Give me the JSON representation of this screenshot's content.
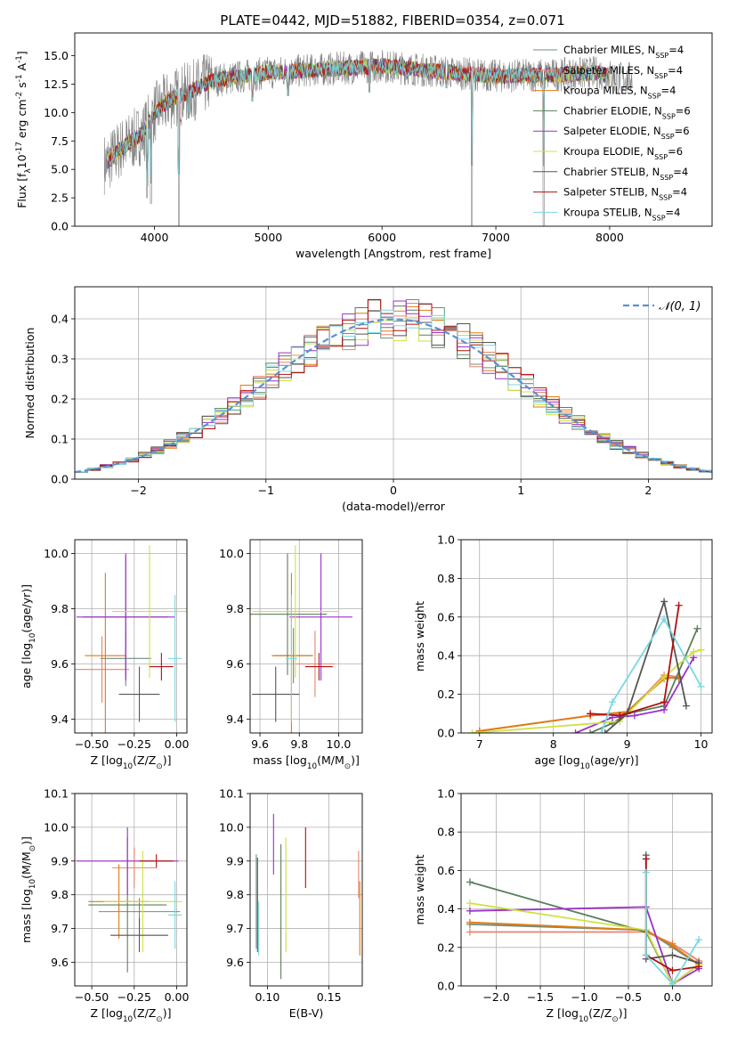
{
  "figure_title": "PLATE=0442, MJD=51882, FIBERID=0354, z=0.071",
  "colors": {
    "Chabrier MILES": "#6e8e84",
    "Salpeter MILES": "#e8846c",
    "Kroupa MILES": "#e07b10",
    "Chabrier ELODIE": "#5a7f5a",
    "Salpeter ELODIE": "#9b30c8",
    "Kroupa ELODIE": "#d0e040",
    "Chabrier STELIB": "#555555",
    "Salpeter STELIB": "#b01010",
    "Kroupa STELIB": "#78d8e0",
    "observed": "#808080",
    "gaussian": "#5b8fd6"
  },
  "chart_data": [
    {
      "id": "spectrum",
      "type": "line",
      "xlabel": "wavelength [Angstrom, rest frame]",
      "ylabel": "Flux [f$_\\lambda$10$^{-17}$ erg cm$^{-2}$ s$^{-1}$ A$^{-1}$]",
      "xlim": [
        3300,
        8900
      ],
      "ylim": [
        0,
        17
      ],
      "xticks": [
        4000,
        5000,
        6000,
        7000,
        8000
      ],
      "yticks": [
        0.0,
        2.5,
        5.0,
        7.5,
        10.0,
        12.5,
        15.0
      ],
      "grid": false,
      "legend_position": "right",
      "legend": [
        {
          "name": "Chabrier MILES",
          "nssp": "4"
        },
        {
          "name": "Salpeter MILES",
          "nssp": "4"
        },
        {
          "name": "Kroupa MILES",
          "nssp": "4"
        },
        {
          "name": "Chabrier ELODIE",
          "nssp": "6"
        },
        {
          "name": "Salpeter ELODIE",
          "nssp": "6"
        },
        {
          "name": "Kroupa ELODIE",
          "nssp": "6"
        },
        {
          "name": "Chabrier STELIB",
          "nssp": "4"
        },
        {
          "name": "Salpeter STELIB",
          "nssp": "4"
        },
        {
          "name": "Kroupa STELIB",
          "nssp": "4"
        }
      ],
      "continuum_shape": [
        [
          3580,
          5.5
        ],
        [
          3700,
          6.8
        ],
        [
          3900,
          8.2
        ],
        [
          4000,
          10.0
        ],
        [
          4150,
          11.2
        ],
        [
          4350,
          12.0
        ],
        [
          4500,
          12.8
        ],
        [
          5000,
          13.5
        ],
        [
          5500,
          13.8
        ],
        [
          6000,
          14.1
        ],
        [
          6500,
          13.6
        ],
        [
          7000,
          13.2
        ],
        [
          7500,
          13.3
        ],
        [
          7900,
          13.5
        ],
        [
          8100,
          13.0
        ]
      ],
      "absorption_lines": [
        [
          3935,
          2.5
        ],
        [
          3970,
          2.0
        ],
        [
          4215,
          0.0
        ],
        [
          4300,
          9.5
        ],
        [
          4861,
          11.0
        ],
        [
          5175,
          11.5
        ],
        [
          5890,
          11.8
        ],
        [
          6563,
          12.2
        ],
        [
          6790,
          0.0
        ],
        [
          7420,
          0.0
        ]
      ],
      "observed_xrange": [
        3560,
        8200
      ],
      "models_xrange": [
        3580,
        8000
      ]
    },
    {
      "id": "residuals",
      "type": "bar",
      "xlabel": "(data-model)/error",
      "ylabel": "Normed distribution",
      "xlim": [
        -2.5,
        2.5
      ],
      "ylim": [
        0,
        0.48
      ],
      "xticks": [
        -2,
        -1,
        0,
        1,
        2
      ],
      "yticks": [
        0.0,
        0.1,
        0.2,
        0.3,
        0.4
      ],
      "grid": true,
      "legend_position": "top-right",
      "legend": [
        {
          "name": "$\\mathcal{N}(0, 1)$"
        }
      ],
      "bin_width": 0.1,
      "bin_start": -2.5
    },
    {
      "id": "age_vs_Z",
      "type": "scatter",
      "xlabel": "Z [log$_{10}$(Z/Z$_\\odot$)]",
      "ylabel": "age  [log$_{10}$(age/yr)]",
      "xlim": [
        -0.6,
        0.06
      ],
      "ylim": [
        9.35,
        10.05
      ],
      "xticks": [
        -0.5,
        -0.25,
        0.0
      ],
      "yticks": [
        9.4,
        9.6,
        9.8,
        10.0
      ],
      "grid": true,
      "points": [
        {
          "model": "Chabrier MILES",
          "x": -0.3,
          "y": 9.62,
          "xerr": 0.15,
          "yerr": 0.1
        },
        {
          "model": "Salpeter MILES",
          "x": -0.44,
          "y": 9.58,
          "xerr": 0.16,
          "yerr": 0.12
        },
        {
          "model": "Kroupa MILES",
          "x": -0.42,
          "y": 9.63,
          "xerr": 0.12,
          "yerr": 0.3
        },
        {
          "model": "Chabrier ELODIE",
          "x": -0.3,
          "y": 9.77,
          "xerr": 0.25,
          "yerr": 0.22
        },
        {
          "model": "Salpeter ELODIE",
          "x": -0.3,
          "y": 9.77,
          "xerr": 0.29,
          "yerr": 0.23
        },
        {
          "model": "Kroupa ELODIE",
          "x": -0.16,
          "y": 9.79,
          "xerr": 0.22,
          "yerr": 0.24
        },
        {
          "model": "Chabrier STELIB",
          "x": -0.22,
          "y": 9.49,
          "xerr": 0.12,
          "yerr": 0.1
        },
        {
          "model": "Salpeter STELIB",
          "x": -0.09,
          "y": 9.59,
          "xerr": 0.07,
          "yerr": 0.05
        },
        {
          "model": "Kroupa STELIB",
          "x": -0.01,
          "y": 9.62,
          "xerr": 0.04,
          "yerr": 0.23
        }
      ]
    },
    {
      "id": "age_vs_mass",
      "type": "scatter",
      "xlabel": "mass [log$_{10}$(M/M$_\\odot$)]",
      "ylabel": "",
      "xlim": [
        9.55,
        10.12
      ],
      "ylim": [
        9.35,
        10.05
      ],
      "xticks": [
        9.6,
        9.8,
        10.0
      ],
      "yticks": [
        9.4,
        9.6,
        9.8,
        10.0
      ],
      "grid": true,
      "points": [
        {
          "model": "Chabrier MILES",
          "x": 9.77,
          "y": 9.63,
          "xerr": 0.1,
          "yerr": 0.1
        },
        {
          "model": "Salpeter MILES",
          "x": 9.88,
          "y": 9.6,
          "xerr": 0.1,
          "yerr": 0.12
        },
        {
          "model": "Kroupa MILES",
          "x": 9.76,
          "y": 9.63,
          "xerr": 0.1,
          "yerr": 0.3
        },
        {
          "model": "Chabrier ELODIE",
          "x": 9.74,
          "y": 9.78,
          "xerr": 0.2,
          "yerr": 0.22
        },
        {
          "model": "Salpeter ELODIE",
          "x": 9.91,
          "y": 9.77,
          "xerr": 0.16,
          "yerr": 0.23
        },
        {
          "model": "Kroupa ELODIE",
          "x": 9.78,
          "y": 9.79,
          "xerr": 0.22,
          "yerr": 0.24
        },
        {
          "model": "Chabrier STELIB",
          "x": 9.68,
          "y": 9.49,
          "xerr": 0.12,
          "yerr": 0.1
        },
        {
          "model": "Salpeter STELIB",
          "x": 9.9,
          "y": 9.59,
          "xerr": 0.07,
          "yerr": 0.05
        },
        {
          "model": "Kroupa STELIB",
          "x": 9.76,
          "y": 9.62,
          "xerr": 0.03,
          "yerr": 0.23
        }
      ]
    },
    {
      "id": "weight_vs_age",
      "type": "line",
      "xlabel": "age  [log$_{10}$(age/yr)]",
      "ylabel": "mass weight",
      "xlim": [
        6.75,
        10.15
      ],
      "ylim": [
        0,
        1
      ],
      "xticks": [
        7,
        8,
        9,
        10
      ],
      "yticks": [
        0.0,
        0.2,
        0.4,
        0.6,
        0.8,
        1.0
      ],
      "grid": true,
      "series": [
        {
          "name": "Chabrier MILES",
          "x": [
            7.0,
            8.5,
            9.0,
            9.5,
            9.7
          ],
          "y": [
            0.01,
            0.09,
            0.11,
            0.29,
            0.28
          ]
        },
        {
          "name": "Salpeter MILES",
          "x": [
            7.0,
            8.5,
            9.0,
            9.5,
            9.7
          ],
          "y": [
            0.01,
            0.09,
            0.1,
            0.3,
            0.29
          ]
        },
        {
          "name": "Kroupa MILES",
          "x": [
            7.0,
            8.5,
            9.0,
            9.5,
            9.7
          ],
          "y": [
            0.01,
            0.09,
            0.11,
            0.28,
            0.29
          ]
        },
        {
          "name": "Chabrier ELODIE",
          "x": [
            8.5,
            8.8,
            9.0,
            9.5,
            9.95
          ],
          "y": [
            0.0,
            0.05,
            0.1,
            0.14,
            0.54
          ]
        },
        {
          "name": "Salpeter ELODIE",
          "x": [
            8.3,
            8.8,
            9.1,
            9.5,
            9.9
          ],
          "y": [
            0.0,
            0.08,
            0.09,
            0.12,
            0.39
          ]
        },
        {
          "name": "Kroupa ELODIE",
          "x": [
            6.9,
            8.9,
            9.5,
            9.9,
            10.0
          ],
          "y": [
            0.0,
            0.06,
            0.29,
            0.42,
            0.43
          ]
        },
        {
          "name": "Chabrier STELIB",
          "x": [
            8.7,
            9.0,
            9.5,
            9.8
          ],
          "y": [
            0.0,
            0.1,
            0.68,
            0.14
          ]
        },
        {
          "name": "Salpeter STELIB",
          "x": [
            8.5,
            8.9,
            9.5,
            9.7
          ],
          "y": [
            0.1,
            0.09,
            0.16,
            0.66
          ]
        },
        {
          "name": "Kroupa STELIB",
          "x": [
            8.65,
            8.8,
            9.5,
            10.0
          ],
          "y": [
            0.0,
            0.16,
            0.59,
            0.24
          ]
        }
      ]
    },
    {
      "id": "mass_vs_Z",
      "type": "scatter",
      "xlabel": "Z [log$_{10}$(Z/Z$_\\odot$)]",
      "ylabel": "mass [log$_{10}$(M/M$_\\odot$)]",
      "xlim": [
        -0.6,
        0.06
      ],
      "ylim": [
        9.53,
        10.1
      ],
      "xticks": [
        -0.5,
        -0.25,
        0.0
      ],
      "yticks": [
        9.6,
        9.7,
        9.8,
        9.9,
        10.0,
        10.1
      ],
      "grid": true,
      "points": [
        {
          "model": "Chabrier MILES",
          "x": -0.22,
          "y": 9.75,
          "xerr": 0.24,
          "yerr": 0.04
        },
        {
          "model": "Salpeter MILES",
          "x": -0.25,
          "y": 9.88,
          "xerr": 0.13,
          "yerr": 0.06
        },
        {
          "model": "Kroupa MILES",
          "x": -0.34,
          "y": 9.78,
          "xerr": 0.18,
          "yerr": 0.11
        },
        {
          "model": "Chabrier ELODIE",
          "x": -0.29,
          "y": 9.77,
          "xerr": 0.23,
          "yerr": 0.2
        },
        {
          "model": "Salpeter ELODIE",
          "x": -0.29,
          "y": 9.9,
          "xerr": 0.3,
          "yerr": 0.1
        },
        {
          "model": "Kroupa ELODIE",
          "x": -0.2,
          "y": 9.78,
          "xerr": 0.23,
          "yerr": 0.15
        },
        {
          "model": "Chabrier STELIB",
          "x": -0.22,
          "y": 9.68,
          "xerr": 0.17,
          "yerr": 0.05
        },
        {
          "model": "Salpeter STELIB",
          "x": -0.12,
          "y": 9.9,
          "xerr": 0.1,
          "yerr": 0.02
        },
        {
          "model": "Kroupa STELIB",
          "x": -0.01,
          "y": 9.74,
          "xerr": 0.04,
          "yerr": 0.1
        }
      ]
    },
    {
      "id": "mass_vs_ebv",
      "type": "scatter",
      "xlabel": "E(B-V)",
      "ylabel": "",
      "xlim": [
        0.086,
        0.177
      ],
      "ylim": [
        9.53,
        10.1
      ],
      "xticks": [
        0.1,
        0.15
      ],
      "yticks": [
        9.6,
        9.7,
        9.8,
        9.9,
        10.0,
        10.1
      ],
      "grid": true,
      "points": [
        {
          "model": "Chabrier MILES",
          "x": 0.091,
          "y": 9.78,
          "xerr": 0,
          "yerr": 0.14
        },
        {
          "model": "Salpeter MILES",
          "x": 0.174,
          "y": 9.86,
          "xerr": 0,
          "yerr": 0.07
        },
        {
          "model": "Kroupa MILES",
          "x": 0.175,
          "y": 9.73,
          "xerr": 0,
          "yerr": 0.11
        },
        {
          "model": "Chabrier ELODIE",
          "x": 0.111,
          "y": 9.75,
          "xerr": 0,
          "yerr": 0.2
        },
        {
          "model": "Salpeter ELODIE",
          "x": 0.105,
          "y": 9.95,
          "xerr": 0,
          "yerr": 0.09
        },
        {
          "model": "Kroupa ELODIE",
          "x": 0.115,
          "y": 9.8,
          "xerr": 0,
          "yerr": 0.17
        },
        {
          "model": "Chabrier STELIB",
          "x": 0.092,
          "y": 9.77,
          "xerr": 0,
          "yerr": 0.14
        },
        {
          "model": "Salpeter STELIB",
          "x": 0.131,
          "y": 9.91,
          "xerr": 0,
          "yerr": 0.09
        },
        {
          "model": "Kroupa STELIB",
          "x": 0.093,
          "y": 9.7,
          "xerr": 0,
          "yerr": 0.08
        }
      ]
    },
    {
      "id": "weight_vs_Z",
      "type": "line",
      "xlabel": "Z [log$_{10}$(Z/Z$_\\odot$)]",
      "ylabel": "mass weight",
      "xlim": [
        -2.4,
        0.45
      ],
      "ylim": [
        0,
        1
      ],
      "xticks": [
        -2.0,
        -1.5,
        -1.0,
        -0.5,
        0.0
      ],
      "yticks": [
        0.0,
        0.2,
        0.4,
        0.6,
        0.8,
        1.0
      ],
      "grid": true,
      "series": [
        {
          "name": "Chabrier MILES",
          "x": [
            -2.3,
            -0.3,
            0.0,
            0.3
          ],
          "y": [
            0.32,
            0.29,
            0.2,
            0.11
          ]
        },
        {
          "name": "Salpeter MILES",
          "x": [
            -2.3,
            -0.3,
            0.0,
            0.3
          ],
          "y": [
            0.28,
            0.28,
            0.22,
            0.13
          ]
        },
        {
          "name": "Kroupa MILES",
          "x": [
            -2.3,
            -0.3,
            0.0,
            0.3
          ],
          "y": [
            0.33,
            0.29,
            0.21,
            0.11
          ]
        },
        {
          "name": "Chabrier ELODIE",
          "x": [
            -2.3,
            -0.3,
            0.0,
            0.3
          ],
          "y": [
            0.54,
            0.28,
            0.01,
            0.11
          ]
        },
        {
          "name": "Salpeter ELODIE",
          "x": [
            -2.3,
            -0.3,
            0.0,
            0.3
          ],
          "y": [
            0.39,
            0.41,
            0.01,
            0.09
          ]
        },
        {
          "name": "Kroupa ELODIE",
          "x": [
            -2.3,
            -0.3,
            0.0,
            0.3
          ],
          "y": [
            0.43,
            0.29,
            0.01,
            0.11
          ]
        },
        {
          "name": "Chabrier STELIB",
          "x": [
            -0.3,
            -0.3,
            0.0,
            0.3
          ],
          "y": [
            0.68,
            0.14,
            0.16,
            0.12
          ]
        },
        {
          "name": "Salpeter STELIB",
          "x": [
            -0.3,
            -0.3,
            0.0,
            0.3
          ],
          "y": [
            0.66,
            0.16,
            0.08,
            0.1
          ]
        },
        {
          "name": "Kroupa STELIB",
          "x": [
            -0.3,
            -0.3,
            0.0,
            0.3
          ],
          "y": [
            0.59,
            0.16,
            0.01,
            0.24
          ]
        }
      ]
    }
  ]
}
